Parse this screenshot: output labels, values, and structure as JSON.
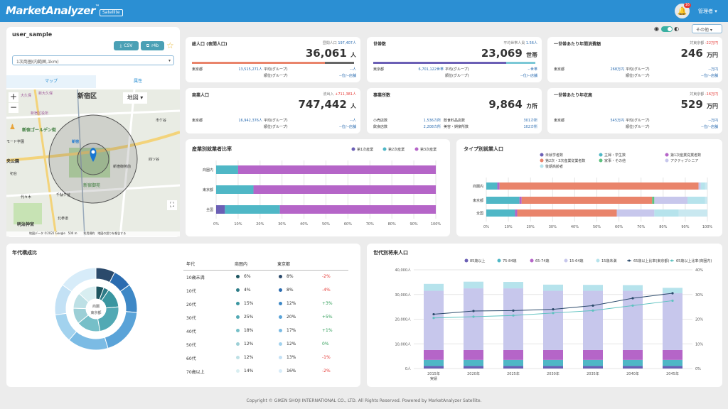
{
  "header": {
    "logo": "MarketAnalyzer",
    "tm": "™",
    "badge": "Satellite",
    "notif": "16",
    "user": "管理者"
  },
  "theme": {
    "other": "その他"
  },
  "left": {
    "title": "user_sample",
    "csv": "CSV",
    "r4b": "r4b",
    "area": "1次商圏(内範囲,1km)",
    "tab_map": "マップ",
    "tab_attr": "属性",
    "map": {
      "ward": "新宿区",
      "type": "地図",
      "labels": [
        "大久保",
        "新大久保",
        "新宿区役所",
        "新宿ゴールデン街",
        "新宿御苑",
        "千駄ケ谷",
        "明治神宮",
        "代々木",
        "北参道",
        "四ツ谷",
        "市ケ谷",
        "央公園",
        "モード学園",
        "新宿",
        "初台",
        "新宿御苑前"
      ],
      "attrib": "地図データ ©2022 Google",
      "scale": "500 m",
      "terms": "利用規約",
      "report": "地図の誤りを報告する"
    }
  },
  "kpi": [
    {
      "title": "総人口 (夜間人口)",
      "sub": "昼間人口",
      "subv": "197,407人",
      "value": "36,061",
      "unit": "人",
      "region": "東京都",
      "rv": "13,515,271人",
      "avg": "平均(グループ)",
      "avgv": "--人",
      "rank": "順位(グループ)",
      "rankv": "--位/--店舗"
    },
    {
      "title": "世帯数",
      "sub": "平均世帯人員",
      "subv": "1.56人",
      "value": "23,069",
      "unit": "世帯",
      "region": "東京都",
      "rv": "6,701,122世帯",
      "avg": "平均(グループ)",
      "avgv": "--世帯",
      "rank": "順位(グループ)",
      "rankv": "--位/--店舗"
    },
    {
      "title": "一世帯あたり年間消費額",
      "sub": "対東京都",
      "subv": "-22万円",
      "value": "246",
      "unit": "万円",
      "region": "東京都",
      "rv": "268万円",
      "avg": "平均(グループ)",
      "avgv": "--万円",
      "rank": "順位(グループ)",
      "rankv": "--位/--店舗"
    },
    {
      "title": "商業人口",
      "sub": "流出入",
      "subv": "+711,381人",
      "value": "747,442",
      "unit": "人",
      "region": "東京都",
      "rv": "16,942,376人",
      "avg": "平均(グループ)",
      "avgv": "--人",
      "rank": "順位(グループ)",
      "rankv": "--位/--店舗"
    },
    {
      "title": "事業所数",
      "value": "9,864",
      "unit": "カ所",
      "l1": "小売店数",
      "l1v": "1,536カ所",
      "l2": "飲食料品店数",
      "l2v": "301カ所",
      "l3": "飲食店数",
      "l3v": "2,208カ所",
      "l4": "美容・娯楽所数",
      "l4v": "102カ所"
    },
    {
      "title": "一世帯あたり年収高",
      "sub": "対東京都",
      "subv": "-16万円",
      "value": "529",
      "unit": "万円",
      "region": "東京都",
      "rv": "545万円",
      "avg": "平均(グループ)",
      "avgv": "--万円",
      "rank": "順位(グループ)",
      "rankv": "--位/--店舗"
    }
  ],
  "colors": {
    "c1": "#6b5fb5",
    "c2": "#4fb7c6",
    "c3": "#b565c8",
    "c4": "#e9846b",
    "c5": "#5ec27f",
    "c6": "#c7c7ec",
    "c7": "#b6e3ec",
    "c8": "#2b4a6b"
  },
  "chart_data": [
    {
      "type": "bar",
      "title": "産業別就業者比率",
      "categories": [
        "商圏内",
        "東京都",
        "全国"
      ],
      "series": [
        {
          "name": "第1次産業",
          "values": [
            0,
            0,
            4
          ]
        },
        {
          "name": "第2次産業",
          "values": [
            10,
            17,
            25
          ]
        },
        {
          "name": "第3次産業",
          "values": [
            90,
            83,
            71
          ]
        }
      ],
      "xlim": [
        0,
        100
      ],
      "xticks": [
        "0%",
        "10%",
        "20%",
        "30%",
        "40%",
        "50%",
        "60%",
        "70%",
        "80%",
        "90%",
        "100%"
      ]
    },
    {
      "type": "bar",
      "title": "タイプ別就業人口",
      "categories": [
        "商圏内",
        "東京都",
        "全国"
      ],
      "series": [
        {
          "name": "未就学者数",
          "values": [
            0,
            0,
            0
          ]
        },
        {
          "name": "主婦・学生数",
          "values": [
            5,
            15,
            13
          ]
        },
        {
          "name": "第1次産業従業者数",
          "values": [
            1,
            1,
            1
          ]
        },
        {
          "name": "第2次・3次産業従業者数",
          "values": [
            90,
            59,
            45
          ]
        },
        {
          "name": "家事・その他",
          "values": [
            0,
            1,
            0
          ]
        },
        {
          "name": "アクティブシニア",
          "values": [
            1,
            15,
            17
          ]
        },
        {
          "name": "後期高齢者",
          "values": [
            2,
            8,
            11
          ]
        }
      ],
      "extra": [
        {
          "name": "",
          "values": [
            1,
            1,
            13
          ]
        }
      ],
      "xlim": [
        0,
        100
      ],
      "xticks": [
        "0%",
        "10%",
        "20%",
        "30%",
        "40%",
        "50%",
        "60%",
        "70%",
        "80%",
        "90%",
        "100%"
      ]
    },
    {
      "type": "table",
      "title": "年代構成比",
      "headers": [
        "年代",
        "商圏内",
        "東京都"
      ],
      "rows": [
        [
          "10歳未満",
          "6%",
          "8%",
          "-2%"
        ],
        [
          "10代",
          "4%",
          "8%",
          "-4%"
        ],
        [
          "20代",
          "15%",
          "12%",
          "+3%"
        ],
        [
          "30代",
          "25%",
          "20%",
          "+5%"
        ],
        [
          "40代",
          "18%",
          "17%",
          "+1%"
        ],
        [
          "50代",
          "12%",
          "12%",
          "0%"
        ],
        [
          "60代",
          "12%",
          "13%",
          "-1%"
        ],
        [
          "70歳以上",
          "14%",
          "16%",
          "-2%"
        ]
      ],
      "center": [
        "商圏",
        "東京都"
      ]
    },
    {
      "type": "bar",
      "title": "世代別将来人口",
      "categories": [
        "2015年\n実績",
        "2020年",
        "2025年",
        "2030年",
        "2035年",
        "2040年",
        "2045年"
      ],
      "series": [
        {
          "name": "85歳以上",
          "values": [
            1000,
            1000,
            1000,
            1000,
            1000,
            1000,
            1000
          ]
        },
        {
          "name": "75-84歳",
          "values": [
            2500,
            2500,
            2500,
            2500,
            2500,
            2500,
            2500
          ]
        },
        {
          "name": "65-74歳",
          "values": [
            4000,
            4000,
            4000,
            4000,
            4000,
            4000,
            4000
          ]
        },
        {
          "name": "15-64歳",
          "values": [
            24000,
            25000,
            25000,
            24000,
            24000,
            24000,
            23000
          ]
        },
        {
          "name": "15歳未満",
          "values": [
            2800,
            2700,
            2600,
            2500,
            2400,
            2300,
            2200
          ]
        }
      ],
      "lines": [
        {
          "name": "65歳以上比率(東京都)",
          "values": [
            22,
            23.3,
            23.5,
            24,
            25.5,
            28.5,
            30.5
          ]
        },
        {
          "name": "65歳以上比率(商圏内)",
          "values": [
            20.5,
            21,
            21.5,
            22.5,
            23.5,
            25.5,
            27.5
          ]
        }
      ],
      "ylim": [
        0,
        40000
      ],
      "y2lim": [
        0,
        40
      ],
      "yticks": [
        "0人",
        "10,000人",
        "20,000人",
        "30,000人",
        "40,000人"
      ],
      "y2ticks": [
        "0%",
        "10%",
        "20%",
        "30%",
        "40%"
      ]
    }
  ],
  "footer": "Copyright © GIKEN SHOJI INTERNATIONAL CO., LTD. All Rights Reserved. Powered by MarketAnalyzer Satellite."
}
